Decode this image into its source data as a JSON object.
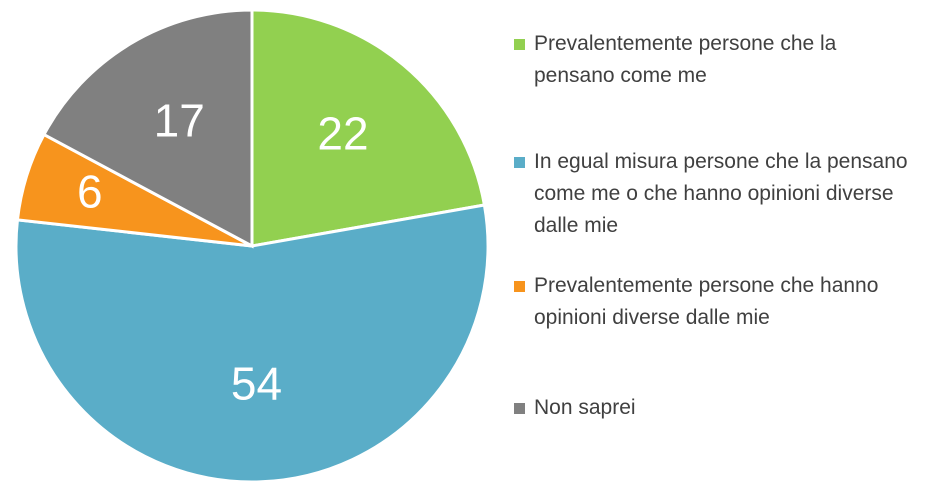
{
  "chart_data": {
    "type": "pie",
    "categories": [
      "Prevalentemente persone che la pensano come me",
      "In egual misura persone che la pensano come me o che hanno opinioni diverse dalle mie",
      "Prevalentemente persone che hanno opinioni diverse dalle mie",
      "Non saprei"
    ],
    "values": [
      22,
      54,
      6,
      17
    ],
    "colors": [
      "#92d050",
      "#5aadc8",
      "#f7941d",
      "#808080"
    ]
  }
}
